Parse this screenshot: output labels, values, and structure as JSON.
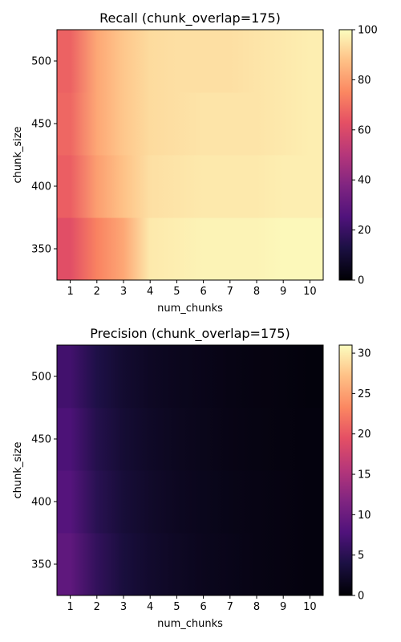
{
  "chart_data": [
    {
      "type": "heatmap",
      "title": "Recall (chunk_overlap=175)",
      "xlabel": "num_chunks",
      "ylabel": "chunk_size",
      "x": [
        1,
        2,
        3,
        4,
        5,
        6,
        7,
        8,
        9,
        10
      ],
      "y": [
        350,
        400,
        450,
        500
      ],
      "xlim": [
        0.5,
        10.5
      ],
      "ylim": [
        325,
        525
      ],
      "colormap": "magma",
      "colorbar": {
        "min": 0,
        "max": 100,
        "ticks": [
          0,
          20,
          40,
          60,
          80,
          100
        ]
      },
      "x_ticks": [
        1,
        2,
        3,
        4,
        5,
        6,
        7,
        8,
        9,
        10
      ],
      "y_ticks": [
        350,
        400,
        450,
        500
      ],
      "values": [
        [
          62,
          74,
          82,
          96,
          97,
          98,
          98,
          98,
          99,
          99
        ],
        [
          66,
          80,
          88,
          94,
          95,
          96,
          96,
          96,
          97,
          97
        ],
        [
          68,
          82,
          89,
          93,
          94,
          95,
          95,
          95,
          96,
          97
        ],
        [
          67,
          82,
          89,
          93,
          94,
          94,
          94,
          95,
          96,
          97
        ]
      ]
    },
    {
      "type": "heatmap",
      "title": "Precision (chunk_overlap=175)",
      "xlabel": "num_chunks",
      "ylabel": "chunk_size",
      "x": [
        1,
        2,
        3,
        4,
        5,
        6,
        7,
        8,
        9,
        10
      ],
      "y": [
        350,
        400,
        450,
        500
      ],
      "xlim": [
        0.5,
        10.5
      ],
      "ylim": [
        325,
        525
      ],
      "colormap": "magma",
      "colorbar": {
        "min": 0,
        "max": 31,
        "ticks": [
          0,
          5,
          10,
          15,
          20,
          25,
          30
        ]
      },
      "x_ticks": [
        1,
        2,
        3,
        4,
        5,
        6,
        7,
        8,
        9,
        10
      ],
      "y_ticks": [
        350,
        400,
        450,
        500
      ],
      "values": [
        [
          9.0,
          5.6,
          3.6,
          2.6,
          2.0,
          1.6,
          1.3,
          1.0,
          0.8,
          0.6
        ],
        [
          8.2,
          5.0,
          3.3,
          2.4,
          1.8,
          1.5,
          1.2,
          1.0,
          0.8,
          0.6
        ],
        [
          7.5,
          4.6,
          3.0,
          2.2,
          1.7,
          1.4,
          1.1,
          0.9,
          0.7,
          0.6
        ],
        [
          6.8,
          4.2,
          2.8,
          2.0,
          1.6,
          1.3,
          1.0,
          0.8,
          0.7,
          0.5
        ]
      ]
    }
  ]
}
